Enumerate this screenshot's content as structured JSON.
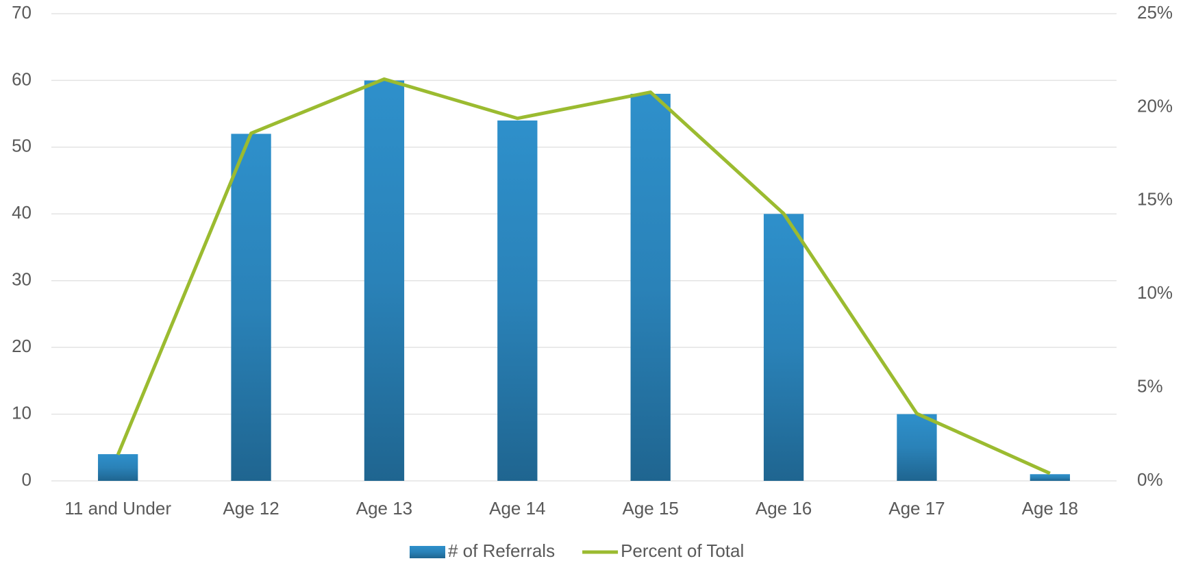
{
  "chart_data": {
    "type": "bar",
    "categories": [
      "11 and Under",
      "Age 12",
      "Age 13",
      "Age 14",
      "Age 15",
      "Age 16",
      "Age 17",
      "Age 18"
    ],
    "series": [
      {
        "name": "# of Referrals",
        "color": "#2a86bd",
        "type": "bar",
        "values": [
          4,
          52,
          60,
          54,
          58,
          40,
          10,
          1
        ]
      },
      {
        "name": "Percent of Total",
        "color": "#9bbb30",
        "type": "line",
        "axis": "y2",
        "values": [
          1.4,
          18.6,
          21.5,
          19.4,
          20.8,
          14.3,
          3.6,
          0.4
        ]
      }
    ],
    "ylim": [
      0,
      70
    ],
    "yticks": [
      0,
      10,
      20,
      30,
      40,
      50,
      60,
      70
    ],
    "y2lim": [
      0,
      25
    ],
    "y2ticks": [
      {
        "value": 0,
        "label": "0%"
      },
      {
        "value": 5,
        "label": "5%"
      },
      {
        "value": 10,
        "label": "10%"
      },
      {
        "value": 15,
        "label": "15%"
      },
      {
        "value": 20,
        "label": "20%"
      },
      {
        "value": 25,
        "label": "25%"
      }
    ],
    "grid": true,
    "legend": "bottom"
  }
}
